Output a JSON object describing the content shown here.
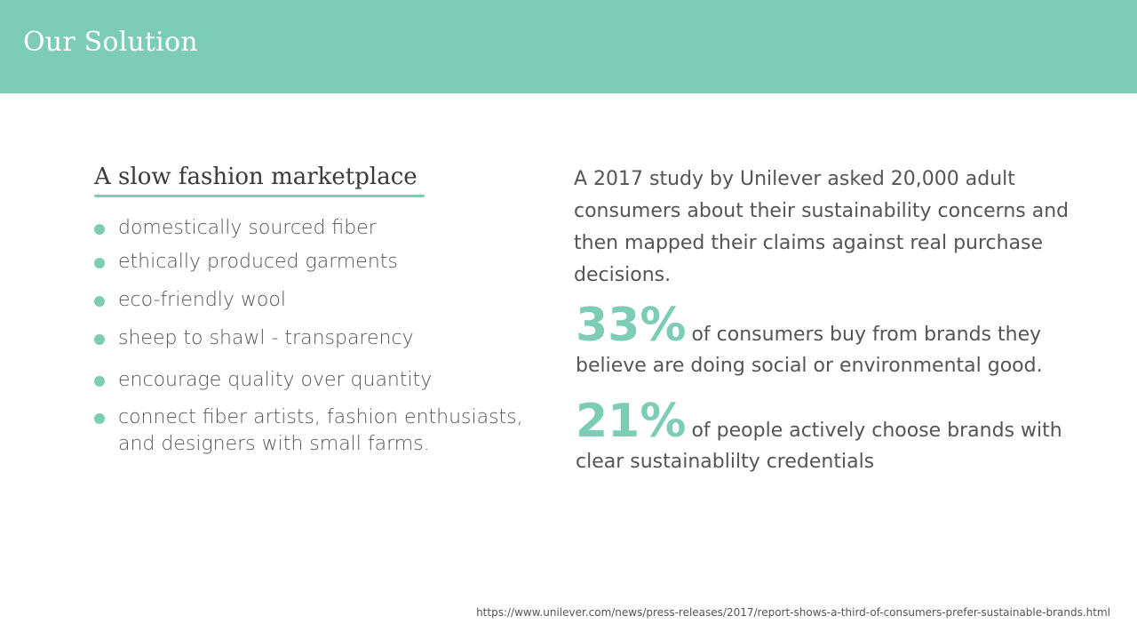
{
  "header": {
    "title": "Our Solution"
  },
  "left": {
    "subheading": "A slow fashion marketplace",
    "bullets": [
      "domestically sourced fiber",
      "ethically produced garments",
      "eco-friendly wool",
      "sheep to shawl - transparency",
      "encourage quality over quantity",
      "connect fiber artists, fashion enthusiasts, and designers with small farms."
    ]
  },
  "right": {
    "intro": "A 2017 study by Unilever asked 20,000 adult consumers about their sustainability concerns and then mapped their claims against real purchase decisions.",
    "stats": [
      {
        "value": "33%",
        "text": "of consumers buy from brands they believe are doing social or environmental good."
      },
      {
        "value": "21%",
        "text": "of people actively choose brands with clear sustainablilty credentials"
      }
    ]
  },
  "footer": {
    "source": "https://www.unilever.com/news/press-releases/2017/report-shows-a-third-of-consumers-prefer-sustainable-brands.html"
  },
  "colors": {
    "accent": "#7dcdb6",
    "text": "#555555",
    "heading": "#3a3a3a"
  }
}
